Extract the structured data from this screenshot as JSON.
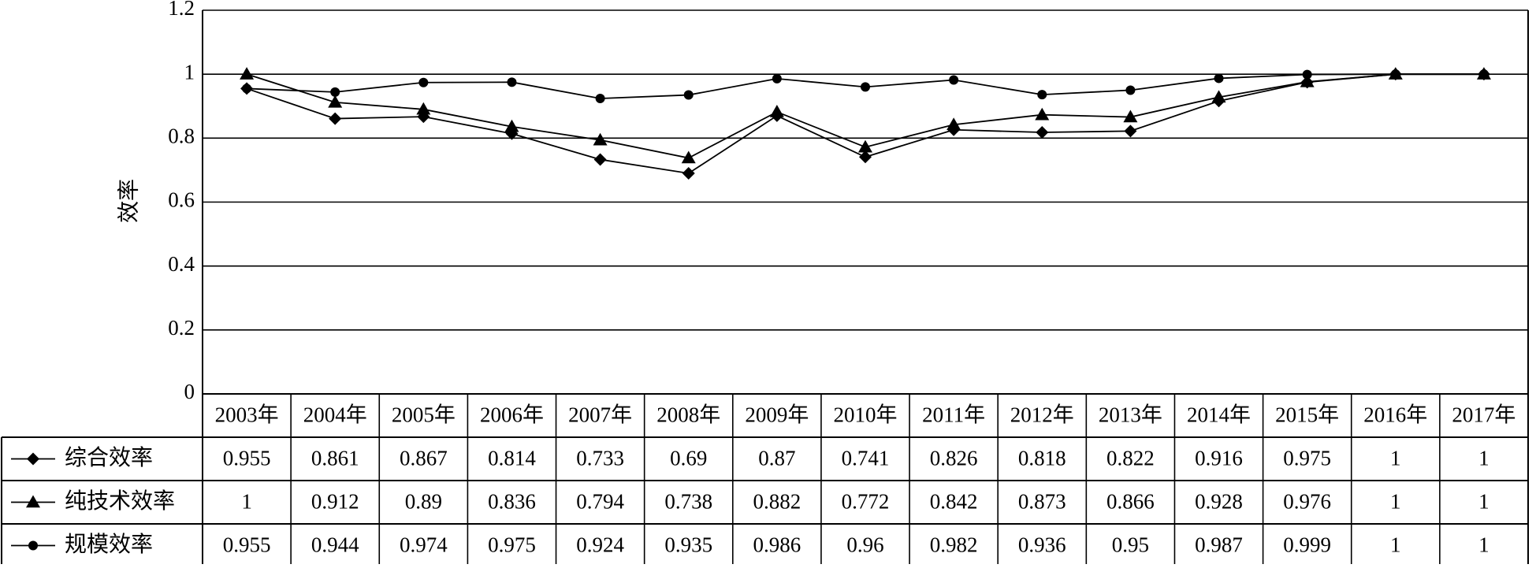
{
  "chart_data": {
    "type": "line",
    "title": "",
    "xlabel": "",
    "ylabel": "效率",
    "ylim": [
      0,
      1.2
    ],
    "yticks": [
      "0",
      "0.2",
      "0.4",
      "0.6",
      "0.8",
      "1",
      "1.2"
    ],
    "grid": true,
    "legend": "data-table-below",
    "categories": [
      "2003年",
      "2004年",
      "2005年",
      "2006年",
      "2007年",
      "2008年",
      "2009年",
      "2010年",
      "2011年",
      "2012年",
      "2013年",
      "2014年",
      "2015年",
      "2016年",
      "2017年"
    ],
    "series": [
      {
        "name": "综合效率",
        "marker": "diamond",
        "values": [
          0.955,
          0.861,
          0.867,
          0.814,
          0.733,
          0.69,
          0.87,
          0.741,
          0.826,
          0.818,
          0.822,
          0.916,
          0.975,
          1,
          1
        ],
        "labels": [
          "0.955",
          "0.861",
          "0.867",
          "0.814",
          "0.733",
          "0.69",
          "0.87",
          "0.741",
          "0.826",
          "0.818",
          "0.822",
          "0.916",
          "0.975",
          "1",
          "1"
        ]
      },
      {
        "name": "纯技术效率",
        "marker": "triangle",
        "values": [
          1,
          0.912,
          0.89,
          0.836,
          0.794,
          0.738,
          0.882,
          0.772,
          0.842,
          0.873,
          0.866,
          0.928,
          0.976,
          1,
          1
        ],
        "labels": [
          "1",
          "0.912",
          "0.89",
          "0.836",
          "0.794",
          "0.738",
          "0.882",
          "0.772",
          "0.842",
          "0.873",
          "0.866",
          "0.928",
          "0.976",
          "1",
          "1"
        ]
      },
      {
        "name": "规模效率",
        "marker": "circle",
        "values": [
          0.955,
          0.944,
          0.974,
          0.975,
          0.924,
          0.935,
          0.986,
          0.96,
          0.982,
          0.936,
          0.95,
          0.987,
          0.999,
          1,
          1
        ],
        "labels": [
          "0.955",
          "0.944",
          "0.974",
          "0.975",
          "0.924",
          "0.935",
          "0.986",
          "0.96",
          "0.982",
          "0.936",
          "0.95",
          "0.987",
          "0.999",
          "1",
          "1"
        ]
      }
    ],
    "colors": {
      "line": "#000000",
      "grid": "#000000",
      "background": "#ffffff"
    }
  }
}
